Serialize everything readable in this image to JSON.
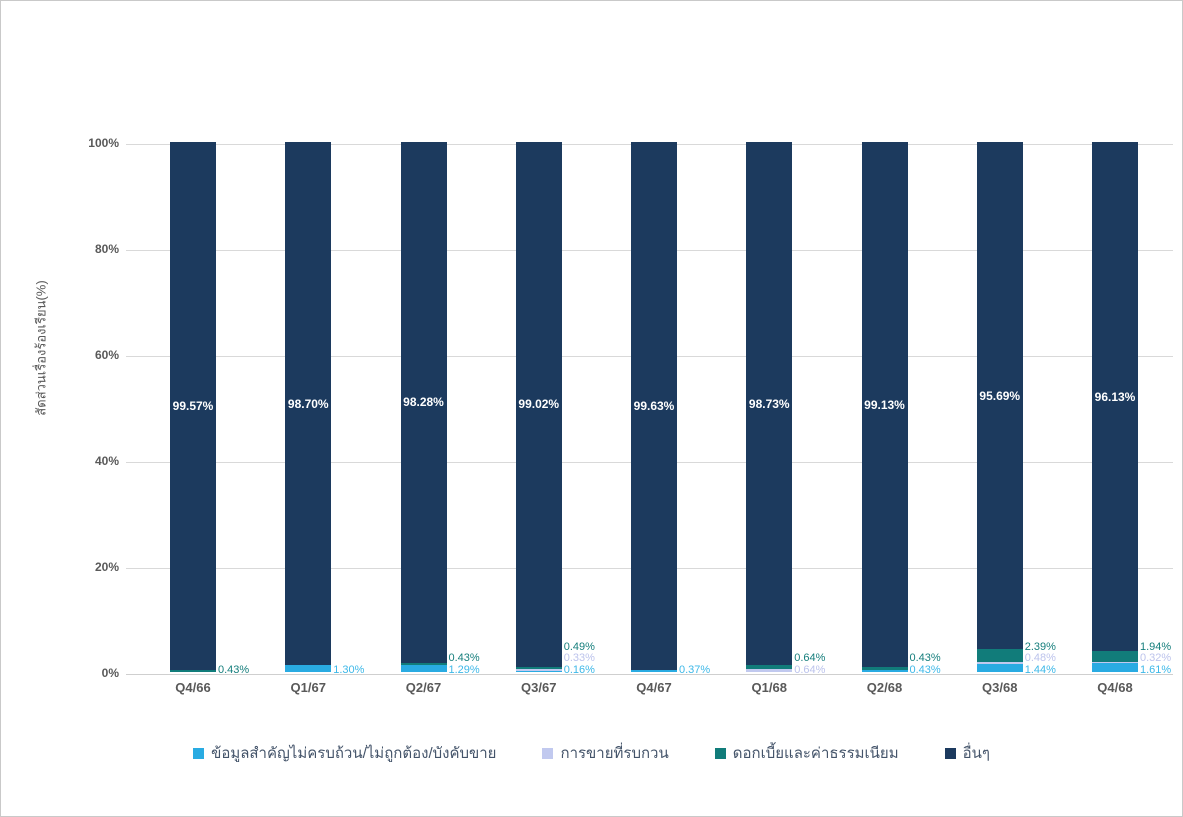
{
  "page": {
    "background": "#ffffff",
    "border_color": "#c9c9c9",
    "grid_color": "#d9d9d9",
    "axis_text_color": "#595959",
    "legend_text_color": "#44546a"
  },
  "chart_data": {
    "type": "bar",
    "stacked": "100%",
    "title": "",
    "xlabel": "",
    "ylabel": "สัดส่วนเรื่องร้องเรียน(%)",
    "ylim": [
      0,
      100
    ],
    "grid": "horizontal",
    "legend_position": "bottom",
    "yticks": [
      {
        "value": 0,
        "label": "0%"
      },
      {
        "value": 20,
        "label": "20%"
      },
      {
        "value": 40,
        "label": "40%"
      },
      {
        "value": 60,
        "label": "60%"
      },
      {
        "value": 80,
        "label": "80%"
      },
      {
        "value": 100,
        "label": "100%"
      }
    ],
    "categories": [
      "Q4/66",
      "Q1/67",
      "Q2/67",
      "Q3/67",
      "Q4/67",
      "Q1/68",
      "Q2/68",
      "Q3/68",
      "Q4/68"
    ],
    "series": [
      {
        "name": "ข้อมูลสำคัญไม่ครบถ้วน/ไม่ถูกต้อง/บังคับขาย",
        "color": "#29abe2",
        "label_color": "#3db8e8",
        "values": [
          0,
          1.3,
          1.29,
          0.16,
          0.37,
          0,
          0.43,
          1.44,
          1.61
        ],
        "labels": [
          null,
          "1.30%",
          "1.29%",
          "0.16%",
          "0.37%",
          null,
          "0.43%",
          "1.44%",
          "1.61%"
        ]
      },
      {
        "name": "การขายที่รบกวน",
        "color": "#c1c9ef",
        "label_color": "#bcc3ec",
        "values": [
          0,
          0,
          0,
          0.33,
          0,
          0.64,
          0,
          0.48,
          0.32
        ],
        "labels": [
          null,
          null,
          null,
          "0.33%",
          null,
          "0.64%",
          null,
          "0.48%",
          "0.32%"
        ]
      },
      {
        "name": "ดอกเบี้ยและค่าธรรมเนียม",
        "color": "#117c7a",
        "label_color": "#157e7c",
        "values": [
          0.43,
          0,
          0.43,
          0.49,
          0,
          0.64,
          0.43,
          2.39,
          1.94
        ],
        "labels": [
          "0.43%",
          null,
          "0.43%",
          "0.49%",
          null,
          "0.64%",
          "0.43%",
          "2.39%",
          "1.94%"
        ]
      },
      {
        "name": "อื่นๆ",
        "color": "#1c3a5e",
        "label_color": "#ffffff",
        "values": [
          99.57,
          98.7,
          98.28,
          99.02,
          99.63,
          98.73,
          99.13,
          95.69,
          96.13
        ],
        "labels": [
          "99.57%",
          "98.70%",
          "98.28%",
          "99.02%",
          "99.63%",
          "98.73%",
          "99.13%",
          "95.69%",
          "96.13%"
        ]
      }
    ]
  }
}
